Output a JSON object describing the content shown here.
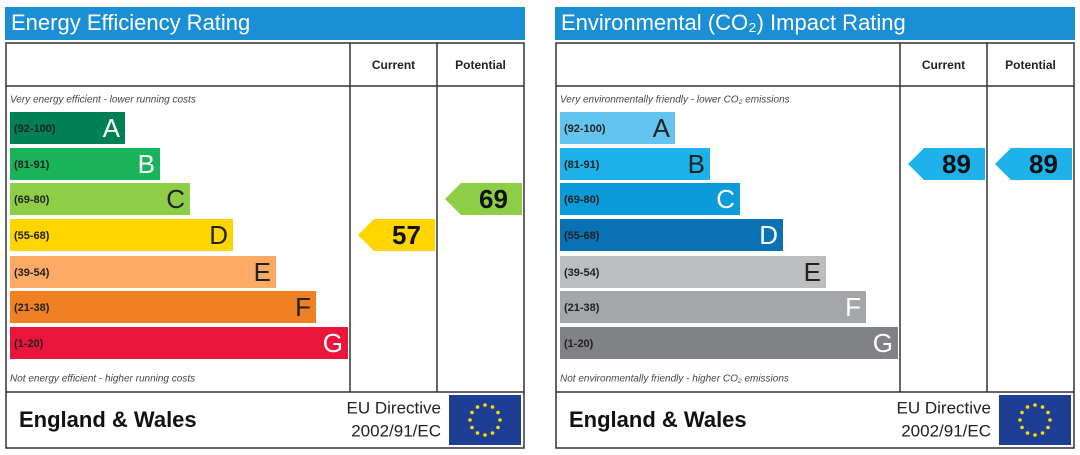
{
  "panels": [
    {
      "title": "Energy Efficiency Rating",
      "columns": [
        "Current",
        "Potential"
      ],
      "top_note": "Very energy efficient - lower running costs",
      "bottom_note": "Not energy efficient - higher running costs",
      "bands": [
        {
          "range": "(92-100)",
          "letter": "A",
          "color": "#008054",
          "letter_color": "#ffffff"
        },
        {
          "range": "(81-91)",
          "letter": "B",
          "color": "#19b459",
          "letter_color": "#ffffff"
        },
        {
          "range": "(69-80)",
          "letter": "C",
          "color": "#8dce46",
          "letter_color": "#222222"
        },
        {
          "range": "(55-68)",
          "letter": "D",
          "color": "#ffd500",
          "letter_color": "#222222"
        },
        {
          "range": "(39-54)",
          "letter": "E",
          "color": "#fcaa65",
          "letter_color": "#222222"
        },
        {
          "range": "(21-38)",
          "letter": "F",
          "color": "#ef8023",
          "letter_color": "#222222"
        },
        {
          "range": "(1-20)",
          "letter": "G",
          "color": "#e9153b",
          "letter_color": "#ffffff"
        }
      ],
      "current": 57,
      "potential": 69,
      "footer": "England & Wales",
      "directive": [
        "EU Directive",
        "2002/91/EC"
      ]
    },
    {
      "title": "Environmental (CO₂) Impact Rating",
      "columns": [
        "Current",
        "Potential"
      ],
      "top_note": "Very environmentally friendly - lower CO₂ emissions",
      "bottom_note": "Not environmentally friendly - higher CO₂ emissions",
      "bands": [
        {
          "range": "(92-100)",
          "letter": "A",
          "color": "#63c5ef",
          "letter_color": "#222222"
        },
        {
          "range": "(81-91)",
          "letter": "B",
          "color": "#1fb1ea",
          "letter_color": "#222222"
        },
        {
          "range": "(69-80)",
          "letter": "C",
          "color": "#0b9bdb",
          "letter_color": "#ffffff"
        },
        {
          "range": "(55-68)",
          "letter": "D",
          "color": "#0a71b5",
          "letter_color": "#ffffff"
        },
        {
          "range": "(39-54)",
          "letter": "E",
          "color": "#bbbdbf",
          "letter_color": "#222222"
        },
        {
          "range": "(21-38)",
          "letter": "F",
          "color": "#a4a6a8",
          "letter_color": "#ffffff"
        },
        {
          "range": "(1-20)",
          "letter": "G",
          "color": "#808285",
          "letter_color": "#ffffff"
        }
      ],
      "current": 89,
      "potential": 89,
      "footer": "England & Wales",
      "directive": [
        "EU Directive",
        "2002/91/EC"
      ]
    }
  ]
}
